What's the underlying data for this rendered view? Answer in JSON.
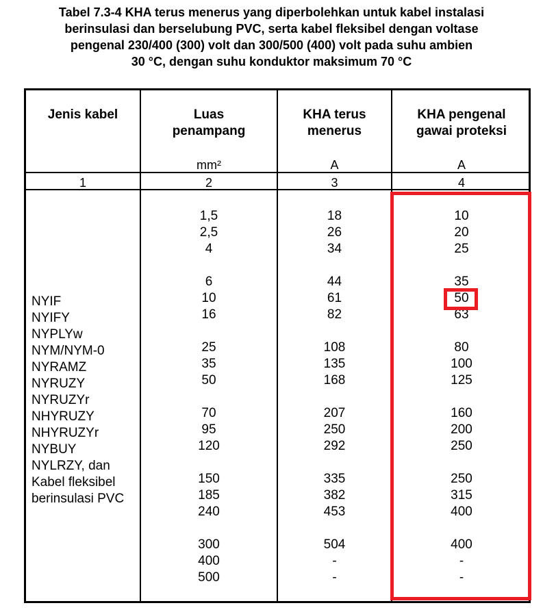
{
  "title_lines": [
    "Tabel  7.3-4  KHA terus menerus yang diperbolehkan untuk kabel instalasi",
    "berinsulasi dan berselubung PVC, serta kabel fleksibel dengan voltase",
    "pengenal 230/400 (300) volt dan 300/500 (400) volt pada suhu ambien",
    "30 °C, dengan suhu konduktor maksimum 70 °C"
  ],
  "headers": {
    "col1": "Jenis kabel",
    "col2_line1": "Luas",
    "col2_line2": "penampang",
    "col3_line1": "KHA terus",
    "col3_line2": "menerus",
    "col4_line1": "KHA pengenal",
    "col4_line2": "gawai proteksi"
  },
  "units": {
    "col2": "mm²",
    "col3": "A",
    "col4": "A"
  },
  "column_numbers": [
    "1",
    "2",
    "3",
    "4"
  ],
  "cable_types": [
    "NYIF",
    "NYIFY",
    "NYPLYw",
    "NYM/NYM-0",
    "NYRAMZ",
    "NYRUZY",
    "NYRUZYr",
    "NHYRUZY",
    "NHYRUZYr",
    "NYBUY",
    "NYLRZY, dan",
    "Kabel fleksibel",
    "berinsulasi PVC"
  ],
  "rows": [
    {
      "area": "1,5",
      "kha": "18",
      "protect": "10"
    },
    {
      "area": "2,5",
      "kha": "26",
      "protect": "20"
    },
    {
      "area": "4",
      "kha": "34",
      "protect": "25"
    },
    {
      "area": "6",
      "kha": "44",
      "protect": "35"
    },
    {
      "area": "10",
      "kha": "61",
      "protect": "50"
    },
    {
      "area": "16",
      "kha": "82",
      "protect": "63"
    },
    {
      "area": "25",
      "kha": "108",
      "protect": "80"
    },
    {
      "area": "35",
      "kha": "135",
      "protect": "100"
    },
    {
      "area": "50",
      "kha": "168",
      "protect": "125"
    },
    {
      "area": "70",
      "kha": "207",
      "protect": "160"
    },
    {
      "area": "95",
      "kha": "250",
      "protect": "200"
    },
    {
      "area": "120",
      "kha": "292",
      "protect": "250"
    },
    {
      "area": "150",
      "kha": "335",
      "protect": "250"
    },
    {
      "area": "185",
      "kha": "382",
      "protect": "315"
    },
    {
      "area": "240",
      "kha": "453",
      "protect": "400"
    },
    {
      "area": "300",
      "kha": "504",
      "protect": "400"
    },
    {
      "area": "400",
      "kha": "-",
      "protect": "-"
    },
    {
      "area": "500",
      "kha": "-",
      "protect": "-"
    }
  ],
  "highlight_color": "#ec1c24"
}
